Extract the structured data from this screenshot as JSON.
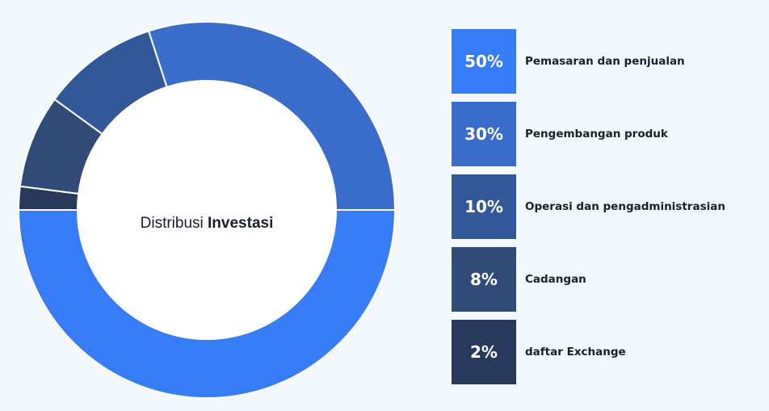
{
  "chart_data": {
    "type": "pie",
    "subtype": "donut",
    "center_text": {
      "regular": "Distribusi",
      "bold": "Investasi"
    },
    "categories": [
      "Pemasaran dan penjualan",
      "Pengembangan produk",
      "Operasi dan pengadministrasian",
      "Cadangan",
      "daftar Exchange"
    ],
    "values": [
      50,
      30,
      10,
      8,
      2
    ],
    "value_labels": [
      "50%",
      "30%",
      "10%",
      "8%",
      "2%"
    ],
    "colors": [
      "#377cf7",
      "#3a6dcb",
      "#33589a",
      "#314a78",
      "#283a5b"
    ],
    "legend_position": "right"
  }
}
